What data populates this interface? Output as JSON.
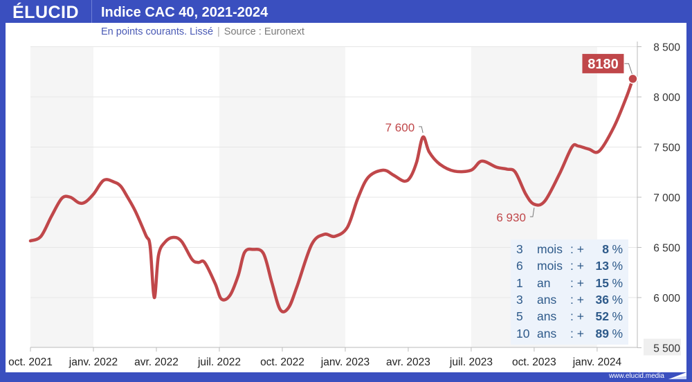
{
  "header": {
    "brand": "ÉLUCID",
    "title": "Indice CAC 40, 2021-2024",
    "subtitle": "En points courants. Lissé",
    "source": "Source : Euronext"
  },
  "footer": {
    "url": "www.elucid.media"
  },
  "colors": {
    "line": "#c0474a",
    "frame": "#3a4fbf",
    "stats_text": "#2e5a8a",
    "band": "#f5f5f5"
  },
  "stats": [
    {
      "n": "3",
      "unit": "mois",
      "sep": ": +",
      "value": "8",
      "pct": "%"
    },
    {
      "n": "6",
      "unit": "mois",
      "sep": ": +",
      "value": "13",
      "pct": "%"
    },
    {
      "n": "1",
      "unit": "an",
      "sep": ": +",
      "value": "15",
      "pct": "%"
    },
    {
      "n": "3",
      "unit": "ans",
      "sep": ": +",
      "value": "36",
      "pct": "%"
    },
    {
      "n": "5",
      "unit": "ans",
      "sep": ": +",
      "value": "52",
      "pct": "%"
    },
    {
      "n": "10",
      "unit": "ans",
      "sep": ": +",
      "value": "89",
      "pct": "%"
    }
  ],
  "chart_data": {
    "type": "line",
    "title": "Indice CAC 40, 2021-2024",
    "subtitle": "En points courants. Lissé",
    "xlabel": "",
    "ylabel": "",
    "x_ticks": [
      "oct. 2021",
      "janv. 2022",
      "avr. 2022",
      "juil. 2022",
      "oct. 2022",
      "janv. 2023",
      "avr. 2023",
      "juil. 2023",
      "oct. 2023",
      "janv. 2024"
    ],
    "y_ticks": [
      "8 500",
      "8 000",
      "7 500",
      "7 000",
      "6 500",
      "6 000",
      "5 500"
    ],
    "y_tick_values": [
      8500,
      8000,
      7500,
      7000,
      6500,
      6000,
      5500
    ],
    "ylim": [
      5500,
      8500
    ],
    "xlim_months": [
      0,
      30.3
    ],
    "grid": true,
    "shaded_periods_months": [
      [
        0,
        3
      ],
      [
        9,
        15
      ],
      [
        21,
        27
      ]
    ],
    "series": [
      {
        "name": "CAC 40",
        "x_months": [
          0,
          0.5,
          1.0,
          1.5,
          1.9,
          2.3,
          2.6,
          3.0,
          3.5,
          4.0,
          4.3,
          4.6,
          5.0,
          5.5,
          5.7,
          5.9,
          6.1,
          6.4,
          6.8,
          7.2,
          7.7,
          8.0,
          8.3,
          8.8,
          9.1,
          9.5,
          9.9,
          10.2,
          10.6,
          11.1,
          11.5,
          11.9,
          12.3,
          12.7,
          13.4,
          14.0,
          14.5,
          15.1,
          15.6,
          16.1,
          16.8,
          17.3,
          17.8,
          18.1,
          18.4,
          18.7,
          19.0,
          19.5,
          20.2,
          21.0,
          21.5,
          22.2,
          22.7,
          23.1,
          23.6,
          24.0,
          24.5,
          25.2,
          25.8,
          26.1,
          26.6,
          27.1,
          27.8,
          28.4,
          28.7
        ],
        "values": [
          6565,
          6610,
          6810,
          6990,
          7000,
          6945,
          6950,
          7030,
          7170,
          7150,
          7110,
          7010,
          6860,
          6620,
          6515,
          6000,
          6420,
          6550,
          6600,
          6560,
          6380,
          6350,
          6350,
          6140,
          5985,
          6020,
          6220,
          6450,
          6480,
          6440,
          6150,
          5880,
          5900,
          6110,
          6530,
          6630,
          6610,
          6700,
          6990,
          7200,
          7270,
          7220,
          7160,
          7200,
          7350,
          7600,
          7450,
          7330,
          7260,
          7270,
          7360,
          7300,
          7280,
          7250,
          7030,
          6930,
          6960,
          7230,
          7500,
          7510,
          7480,
          7460,
          7700,
          8000,
          8180
        ]
      }
    ],
    "annotations": [
      {
        "label": "7 600",
        "x_month": 18.7,
        "value": 7600
      },
      {
        "label": "6 930",
        "x_month": 24.0,
        "value": 6930
      },
      {
        "label": "8180",
        "x_month": 28.7,
        "value": 8180,
        "style": "box"
      }
    ]
  }
}
